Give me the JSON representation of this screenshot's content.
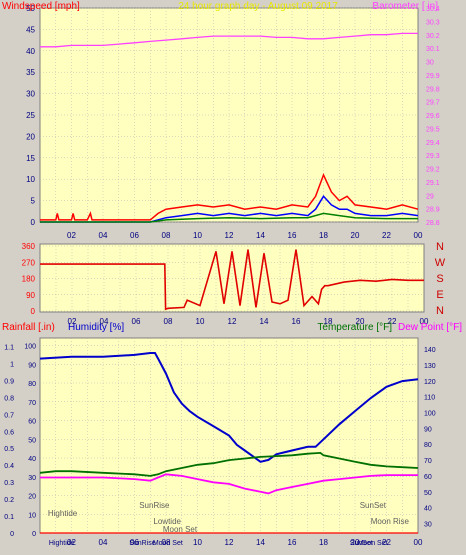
{
  "colors": {
    "window_bg": "#d4d0c8",
    "plot_bg": "#ffffc0",
    "grid": "#b4b4b4",
    "wind_gust": "#ff0000",
    "wind_speed": "#0000ff",
    "wind_avg": "#008000",
    "barometer": "#ff40ff",
    "direction": "#e00000",
    "rainfall": "#ff0000",
    "humidity": "#0000cc",
    "temperature": "#007000",
    "dew_point": "#ff00ff",
    "annotation": "#606060"
  },
  "chart_data": [
    {
      "type": "line",
      "title": "24 hour graph day - August 09 2017",
      "ylabel_left": "Windspeed [mph]",
      "ylabel_right": "Barometer [ in]",
      "x_ticks": [
        "02",
        "04",
        "06",
        "08",
        "10",
        "12",
        "14",
        "16",
        "18",
        "20",
        "22",
        "00"
      ],
      "xlim": [
        0,
        24
      ],
      "ylim_left": [
        0,
        50
      ],
      "y_ticks_left": [
        "0",
        "5",
        "10",
        "15",
        "20",
        "25",
        "30",
        "35",
        "40",
        "45",
        "50"
      ],
      "ylim_right": [
        28.8,
        30.4
      ],
      "y_ticks_right": [
        "28.8",
        "28.9",
        "29",
        "29.1",
        "29.2",
        "29.3",
        "29.4",
        "29.5",
        "29.6",
        "29.7",
        "29.8",
        "29.9",
        "30",
        "30.1",
        "30.2",
        "30.3",
        "30.4"
      ],
      "grid": true,
      "series": [
        {
          "name": "Windspeed gust",
          "axis": "left",
          "x": [
            0,
            1,
            1.1,
            1.2,
            2,
            2.1,
            2.2,
            3,
            3.2,
            3.3,
            7,
            7.5,
            8,
            9,
            10,
            11,
            12,
            13,
            14,
            15,
            16,
            17,
            17.5,
            18,
            18.5,
            19,
            19.5,
            20,
            21,
            22,
            23,
            24
          ],
          "y": [
            0.5,
            0.5,
            2,
            0.5,
            0.5,
            2,
            0.5,
            0.5,
            2,
            0.5,
            0.5,
            2,
            3,
            3.5,
            4,
            3.5,
            4,
            3,
            3.5,
            3,
            4,
            3.5,
            6,
            11,
            7,
            5,
            6,
            4,
            3.5,
            3,
            4,
            3
          ]
        },
        {
          "name": "Windspeed",
          "axis": "left",
          "x": [
            0,
            7,
            8,
            9,
            10,
            11,
            12,
            13,
            14,
            15,
            16,
            17,
            17.5,
            18,
            18.5,
            19,
            19.5,
            20,
            21,
            22,
            23,
            24
          ],
          "y": [
            0,
            0,
            1,
            1.5,
            2,
            1.5,
            2,
            1.5,
            2,
            1.5,
            2,
            1.5,
            3,
            6,
            4,
            3,
            3,
            2,
            1.5,
            1.5,
            2,
            1.5
          ]
        },
        {
          "name": "Wind average",
          "axis": "left",
          "x": [
            0,
            7,
            8,
            10,
            12,
            14,
            16,
            17,
            18,
            19,
            20,
            22,
            24
          ],
          "y": [
            0,
            0,
            0.5,
            0.8,
            1,
            0.8,
            1,
            1,
            2,
            1.5,
            1,
            0.8,
            0.8
          ]
        },
        {
          "name": "Barometer",
          "axis": "right",
          "x": [
            0,
            1,
            2,
            3,
            4,
            5,
            6,
            7,
            8,
            9,
            10,
            11,
            12,
            13,
            14,
            15,
            16,
            17,
            18,
            19,
            20,
            21,
            22,
            23,
            24
          ],
          "y": [
            30.11,
            30.11,
            30.12,
            30.12,
            30.12,
            30.13,
            30.14,
            30.15,
            30.16,
            30.17,
            30.18,
            30.19,
            30.19,
            30.19,
            30.19,
            30.18,
            30.18,
            30.17,
            30.17,
            30.18,
            30.19,
            30.2,
            30.2,
            30.21,
            30.21
          ]
        }
      ]
    },
    {
      "type": "line",
      "ylim": [
        0,
        360
      ],
      "y_ticks": [
        "0",
        "90",
        "180",
        "270",
        "360"
      ],
      "x_ticks": [
        "02",
        "04",
        "06",
        "08",
        "10",
        "12",
        "14",
        "16",
        "18",
        "20",
        "22",
        "00"
      ],
      "xlim": [
        0,
        24
      ],
      "compass_labels": [
        "N",
        "W",
        "S",
        "E",
        "N"
      ],
      "grid": true,
      "series": [
        {
          "name": "Wind direction",
          "x": [
            0,
            7.8,
            7.85,
            8.0,
            9.0,
            9.2,
            10,
            11,
            11.5,
            12,
            12.5,
            13,
            13.5,
            14,
            14.5,
            15,
            15.5,
            16,
            16.5,
            17,
            17.4,
            17.6,
            17.8,
            18,
            19,
            20,
            21,
            22,
            23,
            24
          ],
          "y": [
            260,
            260,
            10,
            15,
            20,
            60,
            30,
            330,
            40,
            330,
            30,
            340,
            20,
            320,
            50,
            40,
            60,
            340,
            30,
            80,
            40,
            120,
            140,
            140,
            160,
            170,
            165,
            175,
            170,
            170
          ]
        }
      ]
    },
    {
      "type": "line",
      "ylabel_left_1": "Rainfall [.in)",
      "ylabel_left_2": "Humidity [%]",
      "ylabel_right_1": "Temperature [°F]",
      "ylabel_right_2": "Dew Point [°F]",
      "x_ticks": [
        "02",
        "04",
        "06",
        "08",
        "10",
        "12",
        "14",
        "16",
        "18",
        "20",
        "22",
        "00"
      ],
      "xlim": [
        0,
        24
      ],
      "rain_ticks": [
        "0",
        "0.1",
        "0.2",
        "0.3",
        "0.4",
        "0.5",
        "0.6",
        "0.7",
        "0.8",
        "0.9",
        "1",
        "1.1"
      ],
      "rain_lim": [
        0,
        1.15
      ],
      "humidity_ticks": [
        "0",
        "10",
        "20",
        "30",
        "40",
        "50",
        "60",
        "70",
        "80",
        "90",
        "100"
      ],
      "humidity_lim": [
        0,
        104
      ],
      "temp_ticks": [
        "30",
        "40",
        "50",
        "60",
        "70",
        "80",
        "90",
        "100",
        "110",
        "120",
        "130",
        "140"
      ],
      "temp_lim": [
        24,
        147
      ],
      "grid": true,
      "series": [
        {
          "name": "Humidity",
          "axis": "humidity",
          "x": [
            0,
            2,
            4,
            6,
            7,
            7.3,
            7.5,
            8,
            8.5,
            9,
            9.5,
            10,
            11,
            12,
            12.5,
            13,
            13.5,
            14,
            14.5,
            15,
            15.5,
            16,
            17,
            17.5,
            18,
            19,
            20,
            21,
            22,
            23,
            24
          ],
          "y": [
            93,
            94,
            94,
            95,
            96,
            96,
            93,
            85,
            75,
            69,
            65,
            62,
            57,
            52,
            47,
            44,
            41,
            38,
            39,
            42,
            43,
            44,
            46,
            46,
            50,
            58,
            65,
            72,
            78,
            81,
            82
          ]
        },
        {
          "name": "Temperature",
          "axis": "temp",
          "x": [
            0,
            1,
            2,
            4,
            6,
            7,
            7.5,
            8,
            9,
            10,
            11,
            12,
            13,
            14,
            15,
            16,
            17,
            17.8,
            18,
            19,
            20,
            21,
            22,
            23,
            24
          ],
          "y": [
            62,
            63,
            63,
            62,
            61,
            60,
            61,
            63,
            65,
            67,
            68,
            70,
            71,
            72,
            72.5,
            73,
            74,
            74.5,
            73,
            71,
            69,
            67,
            66,
            65.5,
            65
          ]
        },
        {
          "name": "Dew Point",
          "axis": "temp",
          "x": [
            0,
            2,
            4,
            6,
            7,
            7.5,
            8,
            9,
            10,
            11,
            12,
            13,
            14,
            14.5,
            15,
            16,
            17,
            18,
            19,
            20,
            21,
            22,
            23,
            24
          ],
          "y": [
            59,
            59,
            59,
            58,
            57,
            59,
            61,
            60,
            58,
            56,
            55,
            52,
            50,
            49,
            51,
            53,
            55,
            57,
            58,
            59,
            60,
            60.5,
            60.5,
            60.5
          ]
        },
        {
          "name": "Rainfall",
          "axis": "rain",
          "x": [
            0,
            24
          ],
          "y": [
            0,
            0
          ]
        }
      ],
      "annotations": [
        {
          "label": "Hightide",
          "x": 0.5,
          "row": 2
        },
        {
          "label": "SunRise",
          "x": 6.3,
          "row": 1
        },
        {
          "label": "Lowtide",
          "x": 7.2,
          "row": 3
        },
        {
          "label": "Moon Set",
          "x": 7.8,
          "row": 4
        },
        {
          "label": "SunSet",
          "x": 20.3,
          "row": 1
        },
        {
          "label": "Moon Rise",
          "x": 21.0,
          "row": 3
        }
      ],
      "bottom_labels": [
        {
          "label": "Hightide",
          "x": 1.2
        },
        {
          "label": "SunRise",
          "x": 6.3
        },
        {
          "label": "Moon Set",
          "x": 7.8
        },
        {
          "label": "Moon Set",
          "x": 20.8
        },
        {
          "label": "SunSet",
          "x": 20.3
        }
      ]
    }
  ]
}
